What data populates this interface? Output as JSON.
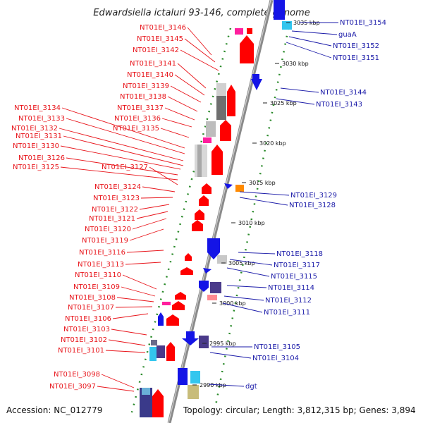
{
  "title": "Edwardsiella ictaluri 93-146, complete genome",
  "footer": {
    "accession": "Accession: NC_012779",
    "stats": "Topology: circular; Length: 3,812,315 bp; Genes: 3,894"
  },
  "ticks": [
    "3035 kbp",
    "3030 kbp",
    "3025 kbp",
    "3020 kbp",
    "3015 kbp",
    "3010 kbp",
    "3005 kbp",
    "3000 kbp",
    "2995 kbp",
    "2990 kbp"
  ],
  "left_labels": [
    "NT01EI_3146",
    "NT01EI_3145",
    "NT01EI_3142",
    "NT01EI_3141",
    "NT01EI_3140",
    "NT01EI_3139",
    "NT01EI_3138",
    "NT01EI_3137",
    "NT01EI_3136",
    "NT01EI_3135",
    "NT01EI_3134",
    "NT01EI_3133",
    "NT01EI_3132",
    "NT01EI_3131",
    "NT01EI_3130",
    "NT01EI_3126",
    "NT01EI_3125",
    "NT01EI_3127",
    "NT01EI_3124",
    "NT01EI_3123",
    "NT01EI_3122",
    "NT01EI_3121",
    "NT01EI_3120",
    "NT01EI_3119",
    "NT01EI_3116",
    "NT01EI_3113",
    "NT01EI_3110",
    "NT01EI_3109",
    "NT01EI_3108",
    "NT01EI_3107",
    "NT01EI_3106",
    "NT01EI_3103",
    "NT01EI_3102",
    "NT01EI_3101",
    "NT01EI_3098",
    "NT01EI_3097"
  ],
  "right_labels": [
    "NT01EI_3154",
    "guaA",
    "NT01EI_3152",
    "NT01EI_3151",
    "NT01EI_3144",
    "NT01EI_3143",
    "NT01EI_3129",
    "NT01EI_3128",
    "NT01EI_3118",
    "NT01EI_3117",
    "NT01EI_3115",
    "NT01EI_3114",
    "NT01EI_3112",
    "NT01EI_3111",
    "NT01EI_3105",
    "NT01EI_3104",
    "dgt"
  ],
  "colors": {
    "backbone": "#8a8a8a",
    "left_label": "#e8141a",
    "right_label": "#1a1aa8",
    "cds_reverse": "#ff0000",
    "cds_forward": "#1414e6",
    "rrna": "#ff1e9e",
    "trna": "#33c6ee",
    "misc": "#c8bc7a",
    "gc_dots": "#2a8a2a"
  }
}
